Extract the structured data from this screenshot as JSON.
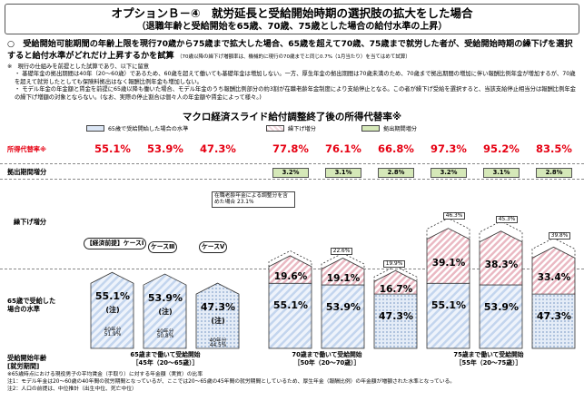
{
  "title": "オプションＢ－④　就労延長と受給開始時期の選択肢の拡大をした場合",
  "subtitle_paren": "（退職年齢と受給開始を65歳、70歳、75歳とした場合の給付水準の上昇）",
  "lead_text": "○　受給開始可能期間の年齢上限を現行70歳から75歳まで拡大した場合、65歳を超えて70歳、75歳まで就労した者が、受給開始時期の繰下げを選択すると給付水準がどれだけ上昇するかを試算",
  "lead_small": "（70歳以降の繰下げ増額率は、機械的に現行の70歳までと同じ0.7%（1月当たり）を当てはめて試算）",
  "notes": [
    "※　現行の仕組みを前提とした試算であり、以下に留意",
    "・ 基礎年金の拠出期間は40年（20～60歳）であるため、60歳を超えて働いても基礎年金は増加しない。一方、厚生年金の拠出期間は70歳未満のため、70歳まで拠出期間の増加に伴い報酬比例年金が増加するが、70歳を超えて就労したとしても保険料拠出はなく報酬比例年金も増加しない。",
    "・ モデル年金の年金額と賃金を前提に65歳以降も働いた場合、モデル年金のうち報酬比例部分の約3割が在職老齢年金制度により支給停止となる。この者が繰下げ受給を選択すると、当該支給停止相当分は報酬比例年金の繰下げ増額の対象とならない。(なお、実際の停止割合は個々人の年金額や賃金によって様々。)"
  ],
  "chart_data": {
    "type": "bar",
    "title": "マクロ経済スライド給付調整終了後の所得代替率※",
    "legend": [
      "65歳で受給開始した場合の水準",
      "繰下げ増分",
      "拠出期間増分"
    ],
    "row_labels": {
      "rate": "所得代替率※",
      "contrib": "拠出期間増分",
      "delay": "繰下げ増分",
      "base": "65歳で受給した場合の水準",
      "start_age": "受給開始年齢",
      "work_period": "[就労期間]"
    },
    "cases": [
      "【経済前提】ケースⅠ",
      "ケースⅢ",
      "ケースⅤ"
    ],
    "groups": [
      {
        "label": "65歳まで働いて受給開始",
        "period": "［45年（20～65歳）］",
        "bars": [
          {
            "total": "55.1%",
            "base": "55.1%",
            "note": "(注)",
            "base_value": 55.1,
            "delay": 0,
            "contrib": 0,
            "years": "40年分",
            "years_pct": "51.9%"
          },
          {
            "total": "53.9%",
            "base": "53.9%",
            "note": "(注)",
            "base_value": 53.9,
            "delay": 0,
            "contrib": 0,
            "years": "40年分",
            "years_pct": "50.8%"
          },
          {
            "total": "47.3%",
            "base": "47.3%",
            "note": "(注)",
            "base_value": 47.3,
            "delay": 0,
            "contrib": 0,
            "years": "40年分",
            "years_pct": "44.5%"
          }
        ]
      },
      {
        "label": "70歳まで働いて受給開始",
        "period": "［50年（20～70歳）］",
        "bars": [
          {
            "total": "77.8%",
            "base": "55.1%",
            "base_value": 55.1,
            "delay": 19.6,
            "delay_label": "19.6%",
            "contrib": 3.2,
            "contrib_label": "3.2%",
            "upper": "23.1%"
          },
          {
            "total": "76.1%",
            "base": "53.9%",
            "base_value": 53.9,
            "delay": 19.1,
            "delay_label": "19.1%",
            "contrib": 3.1,
            "contrib_label": "3.1%",
            "upper": "22.6%"
          },
          {
            "total": "66.8%",
            "base": "47.3%",
            "base_value": 47.3,
            "delay": 16.7,
            "delay_label": "16.7%",
            "contrib": 2.8,
            "contrib_label": "2.8%",
            "upper": "19.9%"
          }
        ]
      },
      {
        "label": "75歳まで働いて受給開始",
        "period": "［55年（20～75歳）］",
        "bars": [
          {
            "total": "97.3%",
            "base": "55.1%",
            "base_value": 55.1,
            "delay": 39.1,
            "delay_label": "39.1%",
            "contrib": 3.2,
            "contrib_label": "3.2%",
            "upper": "46.3%"
          },
          {
            "total": "95.2%",
            "base": "53.9%",
            "base_value": 53.9,
            "delay": 38.3,
            "delay_label": "38.3%",
            "contrib": 3.1,
            "contrib_label": "3.1%",
            "upper": "45.3%"
          },
          {
            "total": "83.5%",
            "base": "47.3%",
            "base_value": 47.3,
            "delay": 33.4,
            "delay_label": "33.4%",
            "contrib": 2.8,
            "contrib_label": "2.8%",
            "upper": "39.8%"
          }
        ]
      }
    ],
    "annotation": "在職老齢年金による調整分を含めた場合",
    "annotation_value": "23.1%"
  },
  "footnotes": [
    "※65歳時点における現役男子の平均賃金（手取り）に対する年金額（実質）の比率",
    "注1：モデル年金は20～60歳の40年間の就労期間となっているが、ここでは20～65歳の45年間の就労期間としているため、厚生年金（報酬比例）の年金額が増額された水準となっている。",
    "注2：人口の前提は、中位推計（出生中位、死亡中位）"
  ],
  "colors": {
    "base": "#dbe6f5",
    "delay": "#f2d7dc",
    "contrib": "#d5e8b8",
    "red": "#e60012"
  }
}
